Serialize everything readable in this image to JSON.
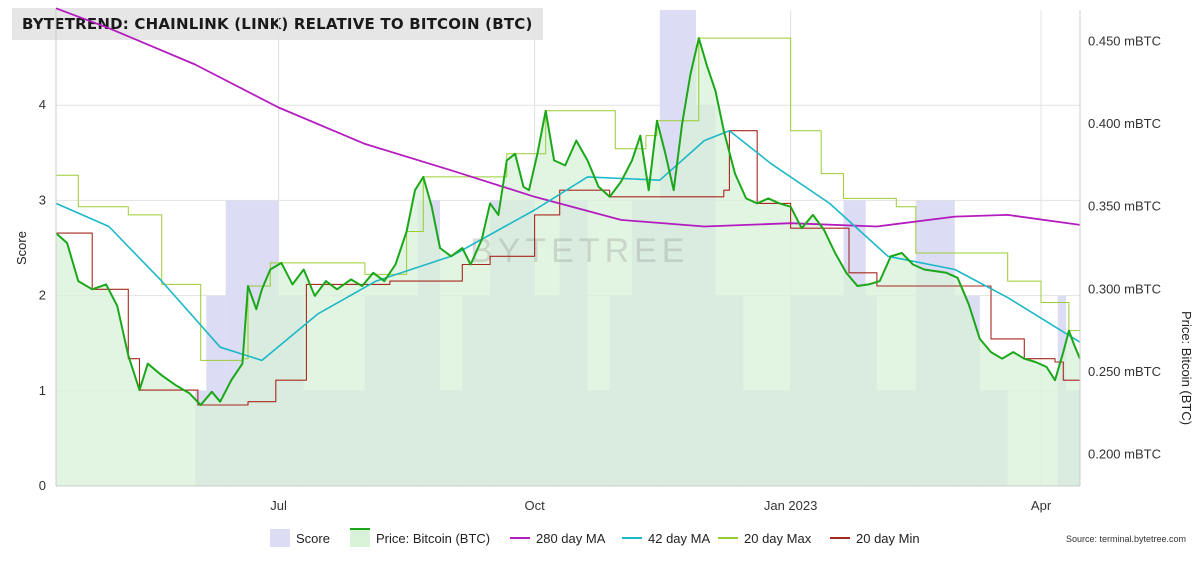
{
  "title": "BYTETREND: CHAINLINK (LINK) RELATIVE TO BITCOIN (BTC)",
  "source": "Source: terminal.bytetree.com",
  "watermark": "BYTETREE",
  "colors": {
    "score_fill": "#dcdcf4",
    "price_fill": "#d8f2d8",
    "price_line": "#1aa81a",
    "ma280": "#b41cc0",
    "ma42": "#1cb8c8",
    "max20": "#9acd32",
    "min20": "#a8281e"
  },
  "chart_data": {
    "type": "line",
    "x_ticks": [
      "Jul",
      "Oct",
      "Jan 2023",
      "Apr"
    ],
    "x_tick_dates": [
      "2022-07-01",
      "2022-10-01",
      "2023-01-01",
      "2023-04-01"
    ],
    "x_range": [
      "2022-04-12",
      "2023-04-15"
    ],
    "y_left": {
      "label": "Score",
      "ticks": [
        0,
        1,
        2,
        3,
        4
      ],
      "range": [
        0,
        5
      ]
    },
    "y_right": {
      "label": "Price: Bitcoin (BTC)",
      "ticks": [
        "0.200 mBTC",
        "0.250 mBTC",
        "0.300 mBTC",
        "0.350 mBTC",
        "0.400 mBTC",
        "0.450 mBTC"
      ],
      "tick_values": [
        0.2,
        0.25,
        0.3,
        0.35,
        0.4,
        0.45
      ],
      "range": [
        0.181,
        0.469
      ]
    },
    "legend": [
      "Score",
      "Price: Bitcoin (BTC)",
      "280 day MA",
      "42 day MA",
      "20 day Max",
      "20 day Min"
    ],
    "legend_position": "bottom",
    "score_series": [
      {
        "date": "2022-04-12",
        "score": 0
      },
      {
        "date": "2022-06-01",
        "score": 1
      },
      {
        "date": "2022-06-05",
        "score": 2
      },
      {
        "date": "2022-06-12",
        "score": 3
      },
      {
        "date": "2022-07-01",
        "score": 2
      },
      {
        "date": "2022-07-10",
        "score": 1
      },
      {
        "date": "2022-08-01",
        "score": 2
      },
      {
        "date": "2022-08-20",
        "score": 3
      },
      {
        "date": "2022-08-28",
        "score": 1
      },
      {
        "date": "2022-09-05",
        "score": 2
      },
      {
        "date": "2022-09-15",
        "score": 3
      },
      {
        "date": "2022-10-01",
        "score": 2
      },
      {
        "date": "2022-10-10",
        "score": 3
      },
      {
        "date": "2022-10-20",
        "score": 1
      },
      {
        "date": "2022-10-28",
        "score": 2
      },
      {
        "date": "2022-11-05",
        "score": 3
      },
      {
        "date": "2022-11-15",
        "score": 5
      },
      {
        "date": "2022-11-28",
        "score": 4
      },
      {
        "date": "2022-12-05",
        "score": 2
      },
      {
        "date": "2022-12-15",
        "score": 1
      },
      {
        "date": "2023-01-01",
        "score": 2
      },
      {
        "date": "2023-01-20",
        "score": 3
      },
      {
        "date": "2023-01-28",
        "score": 2
      },
      {
        "date": "2023-02-01",
        "score": 1
      },
      {
        "date": "2023-02-15",
        "score": 3
      },
      {
        "date": "2023-03-01",
        "score": 2
      },
      {
        "date": "2023-03-10",
        "score": 1
      },
      {
        "date": "2023-03-20",
        "score": 0
      },
      {
        "date": "2023-04-07",
        "score": 2
      },
      {
        "date": "2023-04-10",
        "score": 1
      }
    ],
    "series": [
      {
        "name": "Price: Bitcoin (BTC)",
        "points": [
          [
            "2022-04-12",
            0.334
          ],
          [
            "2022-04-16",
            0.328
          ],
          [
            "2022-04-20",
            0.305
          ],
          [
            "2022-04-25",
            0.3
          ],
          [
            "2022-04-30",
            0.303
          ],
          [
            "2022-05-04",
            0.29
          ],
          [
            "2022-05-08",
            0.26
          ],
          [
            "2022-05-12",
            0.239
          ],
          [
            "2022-05-15",
            0.255
          ],
          [
            "2022-05-20",
            0.248
          ],
          [
            "2022-05-25",
            0.242
          ],
          [
            "2022-05-30",
            0.237
          ],
          [
            "2022-06-03",
            0.23
          ],
          [
            "2022-06-07",
            0.238
          ],
          [
            "2022-06-10",
            0.232
          ],
          [
            "2022-06-14",
            0.245
          ],
          [
            "2022-06-18",
            0.255
          ],
          [
            "2022-06-20",
            0.302
          ],
          [
            "2022-06-23",
            0.288
          ],
          [
            "2022-06-25",
            0.3
          ],
          [
            "2022-06-28",
            0.312
          ],
          [
            "2022-07-02",
            0.316
          ],
          [
            "2022-07-06",
            0.303
          ],
          [
            "2022-07-10",
            0.312
          ],
          [
            "2022-07-14",
            0.296
          ],
          [
            "2022-07-18",
            0.305
          ],
          [
            "2022-07-22",
            0.3
          ],
          [
            "2022-07-27",
            0.306
          ],
          [
            "2022-07-31",
            0.302
          ],
          [
            "2022-08-04",
            0.31
          ],
          [
            "2022-08-08",
            0.305
          ],
          [
            "2022-08-12",
            0.315
          ],
          [
            "2022-08-16",
            0.335
          ],
          [
            "2022-08-19",
            0.36
          ],
          [
            "2022-08-22",
            0.368
          ],
          [
            "2022-08-25",
            0.35
          ],
          [
            "2022-08-28",
            0.325
          ],
          [
            "2022-09-01",
            0.32
          ],
          [
            "2022-09-05",
            0.325
          ],
          [
            "2022-09-08",
            0.315
          ],
          [
            "2022-09-12",
            0.33
          ],
          [
            "2022-09-15",
            0.352
          ],
          [
            "2022-09-18",
            0.345
          ],
          [
            "2022-09-21",
            0.378
          ],
          [
            "2022-09-24",
            0.382
          ],
          [
            "2022-09-27",
            0.362
          ],
          [
            "2022-09-29",
            0.36
          ],
          [
            "2022-10-02",
            0.382
          ],
          [
            "2022-10-05",
            0.408
          ],
          [
            "2022-10-08",
            0.378
          ],
          [
            "2022-10-12",
            0.375
          ],
          [
            "2022-10-16",
            0.39
          ],
          [
            "2022-10-20",
            0.378
          ],
          [
            "2022-10-24",
            0.362
          ],
          [
            "2022-10-28",
            0.356
          ],
          [
            "2022-11-01",
            0.365
          ],
          [
            "2022-11-05",
            0.378
          ],
          [
            "2022-11-08",
            0.393
          ],
          [
            "2022-11-11",
            0.36
          ],
          [
            "2022-11-14",
            0.402
          ],
          [
            "2022-11-17",
            0.382
          ],
          [
            "2022-11-20",
            0.36
          ],
          [
            "2022-11-23",
            0.4
          ],
          [
            "2022-11-26",
            0.43
          ],
          [
            "2022-11-29",
            0.452
          ],
          [
            "2022-12-02",
            0.435
          ],
          [
            "2022-12-05",
            0.42
          ],
          [
            "2022-12-08",
            0.396
          ],
          [
            "2022-12-12",
            0.37
          ],
          [
            "2022-12-16",
            0.355
          ],
          [
            "2022-12-20",
            0.352
          ],
          [
            "2022-12-24",
            0.355
          ],
          [
            "2022-12-28",
            0.352
          ],
          [
            "2023-01-01",
            0.35
          ],
          [
            "2023-01-05",
            0.337
          ],
          [
            "2023-01-09",
            0.345
          ],
          [
            "2023-01-13",
            0.336
          ],
          [
            "2023-01-17",
            0.322
          ],
          [
            "2023-01-21",
            0.31
          ],
          [
            "2023-01-25",
            0.302
          ],
          [
            "2023-01-29",
            0.303
          ],
          [
            "2023-02-02",
            0.305
          ],
          [
            "2023-02-06",
            0.32
          ],
          [
            "2023-02-10",
            0.322
          ],
          [
            "2023-02-14",
            0.315
          ],
          [
            "2023-02-18",
            0.312
          ],
          [
            "2023-02-22",
            0.311
          ],
          [
            "2023-02-26",
            0.31
          ],
          [
            "2023-03-02",
            0.307
          ],
          [
            "2023-03-06",
            0.291
          ],
          [
            "2023-03-10",
            0.27
          ],
          [
            "2023-03-14",
            0.262
          ],
          [
            "2023-03-18",
            0.258
          ],
          [
            "2023-03-22",
            0.262
          ],
          [
            "2023-03-26",
            0.258
          ],
          [
            "2023-03-30",
            0.256
          ],
          [
            "2023-04-03",
            0.253
          ],
          [
            "2023-04-06",
            0.245
          ],
          [
            "2023-04-09",
            0.262
          ],
          [
            "2023-04-11",
            0.275
          ],
          [
            "2023-04-13",
            0.266
          ],
          [
            "2023-04-15",
            0.258
          ]
        ]
      },
      {
        "name": "280 day MA",
        "points": [
          [
            "2022-04-12",
            0.47
          ],
          [
            "2022-05-01",
            0.458
          ],
          [
            "2022-06-01",
            0.436
          ],
          [
            "2022-07-01",
            0.41
          ],
          [
            "2022-08-01",
            0.388
          ],
          [
            "2022-09-01",
            0.372
          ],
          [
            "2022-10-01",
            0.356
          ],
          [
            "2022-11-01",
            0.342
          ],
          [
            "2022-12-01",
            0.338
          ],
          [
            "2023-01-01",
            0.34
          ],
          [
            "2023-02-01",
            0.338
          ],
          [
            "2023-03-01",
            0.344
          ],
          [
            "2023-03-20",
            0.345
          ],
          [
            "2023-04-15",
            0.339
          ]
        ]
      },
      {
        "name": "42 day MA",
        "points": [
          [
            "2022-04-12",
            0.352
          ],
          [
            "2022-05-01",
            0.338
          ],
          [
            "2022-05-20",
            0.305
          ],
          [
            "2022-06-10",
            0.265
          ],
          [
            "2022-06-25",
            0.257
          ],
          [
            "2022-07-15",
            0.285
          ],
          [
            "2022-08-05",
            0.305
          ],
          [
            "2022-09-01",
            0.32
          ],
          [
            "2022-10-01",
            0.348
          ],
          [
            "2022-10-20",
            0.368
          ],
          [
            "2022-11-15",
            0.366
          ],
          [
            "2022-12-01",
            0.39
          ],
          [
            "2022-12-10",
            0.396
          ],
          [
            "2022-12-25",
            0.376
          ],
          [
            "2023-01-15",
            0.352
          ],
          [
            "2023-02-05",
            0.32
          ],
          [
            "2023-03-01",
            0.312
          ],
          [
            "2023-03-20",
            0.295
          ],
          [
            "2023-04-15",
            0.268
          ]
        ]
      },
      {
        "name": "20 day Max",
        "points": [
          [
            "2022-04-12",
            0.369
          ],
          [
            "2022-04-20",
            0.35
          ],
          [
            "2022-05-08",
            0.345
          ],
          [
            "2022-05-20",
            0.303
          ],
          [
            "2022-06-03",
            0.257
          ],
          [
            "2022-06-18",
            0.258
          ],
          [
            "2022-06-20",
            0.302
          ],
          [
            "2022-06-28",
            0.316
          ],
          [
            "2022-07-22",
            0.316
          ],
          [
            "2022-08-01",
            0.309
          ],
          [
            "2022-08-16",
            0.335
          ],
          [
            "2022-08-22",
            0.368
          ],
          [
            "2022-09-12",
            0.368
          ],
          [
            "2022-09-21",
            0.382
          ],
          [
            "2022-10-05",
            0.408
          ],
          [
            "2022-10-25",
            0.408
          ],
          [
            "2022-10-30",
            0.385
          ],
          [
            "2022-11-10",
            0.393
          ],
          [
            "2022-11-14",
            0.402
          ],
          [
            "2022-11-20",
            0.402
          ],
          [
            "2022-11-29",
            0.452
          ],
          [
            "2022-12-20",
            0.452
          ],
          [
            "2023-01-01",
            0.396
          ],
          [
            "2023-01-12",
            0.37
          ],
          [
            "2023-01-20",
            0.355
          ],
          [
            "2023-02-08",
            0.35
          ],
          [
            "2023-02-15",
            0.322
          ],
          [
            "2023-03-01",
            0.322
          ],
          [
            "2023-03-20",
            0.305
          ],
          [
            "2023-04-01",
            0.292
          ],
          [
            "2023-04-11",
            0.275
          ],
          [
            "2023-04-15",
            0.275
          ]
        ]
      },
      {
        "name": "20 day Min",
        "points": [
          [
            "2022-04-12",
            0.334
          ],
          [
            "2022-04-25",
            0.3
          ],
          [
            "2022-05-08",
            0.258
          ],
          [
            "2022-05-12",
            0.239
          ],
          [
            "2022-06-02",
            0.23
          ],
          [
            "2022-06-20",
            0.232
          ],
          [
            "2022-06-30",
            0.245
          ],
          [
            "2022-07-10",
            0.245
          ],
          [
            "2022-07-11",
            0.303
          ],
          [
            "2022-07-18",
            0.303
          ],
          [
            "2022-08-10",
            0.305
          ],
          [
            "2022-08-15",
            0.305
          ],
          [
            "2022-09-05",
            0.315
          ],
          [
            "2022-09-15",
            0.32
          ],
          [
            "2022-10-01",
            0.345
          ],
          [
            "2022-10-10",
            0.36
          ],
          [
            "2022-10-20",
            0.36
          ],
          [
            "2022-10-28",
            0.356
          ],
          [
            "2022-11-20",
            0.356
          ],
          [
            "2022-12-08",
            0.36
          ],
          [
            "2022-12-10",
            0.396
          ],
          [
            "2022-12-20",
            0.352
          ],
          [
            "2022-12-28",
            0.352
          ],
          [
            "2023-01-01",
            0.337
          ],
          [
            "2023-01-17",
            0.337
          ],
          [
            "2023-01-22",
            0.31
          ],
          [
            "2023-02-01",
            0.302
          ],
          [
            "2023-02-18",
            0.302
          ],
          [
            "2023-03-06",
            0.302
          ],
          [
            "2023-03-14",
            0.27
          ],
          [
            "2023-03-26",
            0.258
          ],
          [
            "2023-04-06",
            0.256
          ],
          [
            "2023-04-09",
            0.245
          ],
          [
            "2023-04-15",
            0.245
          ]
        ]
      }
    ]
  }
}
